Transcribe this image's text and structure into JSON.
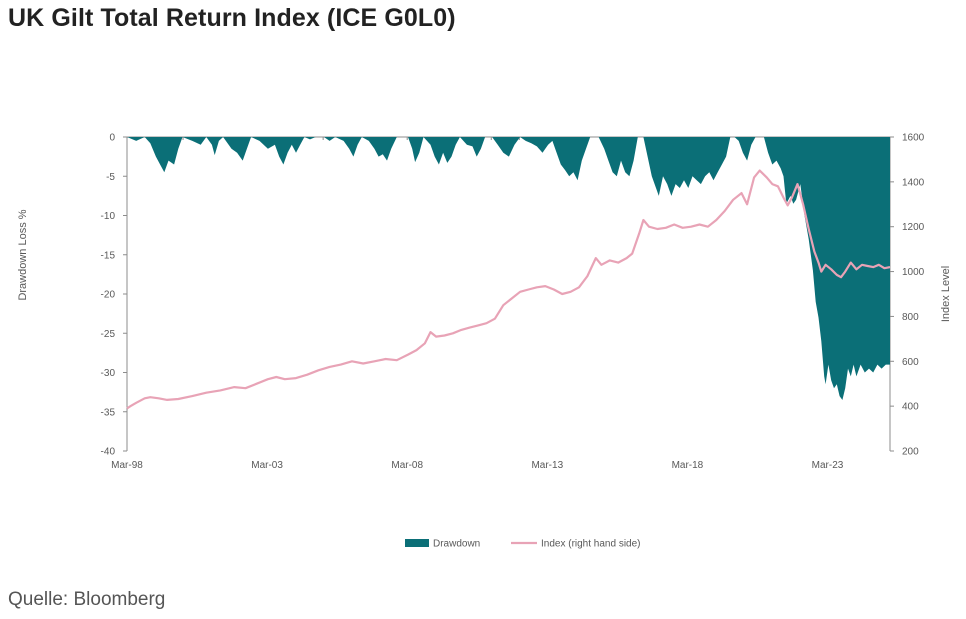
{
  "title": "UK Gilt Total Return Index (ICE G0L0)",
  "source": "Quelle: Bloomberg",
  "chart_data": {
    "type": "area+line",
    "title": "UK Gilt Total Return Index (ICE G0L0)",
    "x_range": [
      1998.17,
      2025.4
    ],
    "x_ticks": [
      {
        "label": "Mar-98",
        "t": 1998.17
      },
      {
        "label": "Mar-03",
        "t": 2003.17
      },
      {
        "label": "Mar-08",
        "t": 2008.17
      },
      {
        "label": "Mar-13",
        "t": 2013.17
      },
      {
        "label": "Mar-18",
        "t": 2018.17
      },
      {
        "label": "Mar-23",
        "t": 2023.17
      }
    ],
    "y_left": {
      "label": "Drawdown Loss %",
      "range": [
        -40,
        0
      ],
      "ticks": [
        "0",
        "-5",
        "-10",
        "-15",
        "-20",
        "-25",
        "-30",
        "-35",
        "-40"
      ]
    },
    "y_right": {
      "label": "Index Level",
      "range": [
        200,
        1600
      ],
      "ticks": [
        "1600",
        "1400",
        "1200",
        "1000",
        "800",
        "600",
        "400",
        "200"
      ]
    },
    "colors": {
      "drawdown": "#0b6f77",
      "index": "#e8a3b6",
      "axis": "#8c8c8c"
    },
    "legend": [
      {
        "name": "Drawdown",
        "kind": "area"
      },
      {
        "name": "Index (right hand side)",
        "kind": "line"
      }
    ],
    "series": [
      {
        "name": "Drawdown",
        "axis": "left",
        "points": [
          [
            1998.17,
            0
          ],
          [
            1998.5,
            -0.5
          ],
          [
            1998.8,
            0
          ],
          [
            1999.0,
            -0.8
          ],
          [
            1999.2,
            -2.5
          ],
          [
            1999.35,
            -3.5
          ],
          [
            1999.5,
            -4.5
          ],
          [
            1999.65,
            -3
          ],
          [
            1999.85,
            -3.5
          ],
          [
            2000.0,
            -1.5
          ],
          [
            2000.15,
            0
          ],
          [
            2000.5,
            -0.5
          ],
          [
            2000.8,
            -1
          ],
          [
            2001.0,
            0
          ],
          [
            2001.2,
            -1
          ],
          [
            2001.3,
            -2.3
          ],
          [
            2001.45,
            -0.5
          ],
          [
            2001.6,
            0
          ],
          [
            2001.9,
            -1.5
          ],
          [
            2002.1,
            -2
          ],
          [
            2002.3,
            -3
          ],
          [
            2002.45,
            -1.5
          ],
          [
            2002.6,
            0
          ],
          [
            2002.9,
            -0.5
          ],
          [
            2003.2,
            -1.5
          ],
          [
            2003.45,
            -1
          ],
          [
            2003.6,
            -2.5
          ],
          [
            2003.75,
            -3.5
          ],
          [
            2003.9,
            -2
          ],
          [
            2004.05,
            -1
          ],
          [
            2004.2,
            -2
          ],
          [
            2004.35,
            -1
          ],
          [
            2004.5,
            0
          ],
          [
            2004.7,
            -0.3
          ],
          [
            2004.9,
            0
          ],
          [
            2005.2,
            0
          ],
          [
            2005.4,
            -0.5
          ],
          [
            2005.6,
            0
          ],
          [
            2005.9,
            -0.5
          ],
          [
            2006.1,
            -1.5
          ],
          [
            2006.25,
            -2.5
          ],
          [
            2006.4,
            -1
          ],
          [
            2006.55,
            0
          ],
          [
            2006.8,
            -0.5
          ],
          [
            2007.0,
            -1.5
          ],
          [
            2007.15,
            -2.5
          ],
          [
            2007.3,
            -2.2
          ],
          [
            2007.45,
            -3
          ],
          [
            2007.6,
            -1.5
          ],
          [
            2007.8,
            0
          ],
          [
            2008.2,
            0
          ],
          [
            2008.35,
            -1.5
          ],
          [
            2008.45,
            -3.2
          ],
          [
            2008.6,
            -2
          ],
          [
            2008.75,
            0
          ],
          [
            2009.0,
            -1
          ],
          [
            2009.15,
            -2.5
          ],
          [
            2009.3,
            -3.5
          ],
          [
            2009.45,
            -2
          ],
          [
            2009.6,
            -3.3
          ],
          [
            2009.75,
            -2.5
          ],
          [
            2009.9,
            -1
          ],
          [
            2010.05,
            0
          ],
          [
            2010.3,
            -1
          ],
          [
            2010.5,
            -1.2
          ],
          [
            2010.65,
            -2.5
          ],
          [
            2010.8,
            -1.5
          ],
          [
            2010.95,
            0
          ],
          [
            2011.2,
            0
          ],
          [
            2011.4,
            -1
          ],
          [
            2011.6,
            -2
          ],
          [
            2011.8,
            -2.5
          ],
          [
            2012.0,
            -1
          ],
          [
            2012.2,
            0
          ],
          [
            2012.4,
            -0.5
          ],
          [
            2012.6,
            -0.8
          ],
          [
            2012.8,
            -1.2
          ],
          [
            2013.0,
            -2
          ],
          [
            2013.2,
            -1
          ],
          [
            2013.35,
            -0.5
          ],
          [
            2013.5,
            -2
          ],
          [
            2013.65,
            -3.5
          ],
          [
            2013.8,
            -4.2
          ],
          [
            2013.95,
            -5
          ],
          [
            2014.1,
            -4.5
          ],
          [
            2014.25,
            -5.5
          ],
          [
            2014.4,
            -3
          ],
          [
            2014.55,
            -1.5
          ],
          [
            2014.7,
            0
          ],
          [
            2015.0,
            0
          ],
          [
            2015.2,
            -1.5
          ],
          [
            2015.35,
            -3
          ],
          [
            2015.5,
            -4.5
          ],
          [
            2015.65,
            -5
          ],
          [
            2015.8,
            -3
          ],
          [
            2015.95,
            -4.5
          ],
          [
            2016.1,
            -5
          ],
          [
            2016.25,
            -3
          ],
          [
            2016.4,
            0
          ],
          [
            2016.6,
            0
          ],
          [
            2016.75,
            -2.5
          ],
          [
            2016.9,
            -5
          ],
          [
            2017.05,
            -6.5
          ],
          [
            2017.15,
            -7.5
          ],
          [
            2017.3,
            -5
          ],
          [
            2017.45,
            -6
          ],
          [
            2017.6,
            -7.5
          ],
          [
            2017.75,
            -6
          ],
          [
            2017.9,
            -6.5
          ],
          [
            2018.05,
            -5.5
          ],
          [
            2018.2,
            -6.5
          ],
          [
            2018.35,
            -5
          ],
          [
            2018.5,
            -5.5
          ],
          [
            2018.65,
            -6
          ],
          [
            2018.8,
            -5
          ],
          [
            2018.95,
            -4.5
          ],
          [
            2019.1,
            -5.5
          ],
          [
            2019.25,
            -4.5
          ],
          [
            2019.4,
            -3.5
          ],
          [
            2019.55,
            -2.5
          ],
          [
            2019.7,
            0
          ],
          [
            2019.85,
            0
          ],
          [
            2020.0,
            -0.5
          ],
          [
            2020.15,
            -2
          ],
          [
            2020.3,
            -3
          ],
          [
            2020.45,
            -1
          ],
          [
            2020.6,
            0
          ],
          [
            2020.9,
            0
          ],
          [
            2021.05,
            -2
          ],
          [
            2021.2,
            -3.5
          ],
          [
            2021.35,
            -3
          ],
          [
            2021.5,
            -4
          ],
          [
            2021.6,
            -5
          ],
          [
            2021.7,
            -8.5
          ],
          [
            2021.85,
            -7.5
          ],
          [
            2021.95,
            -8.5
          ],
          [
            2022.05,
            -8
          ],
          [
            2022.2,
            -6
          ],
          [
            2022.35,
            -10
          ],
          [
            2022.5,
            -13
          ],
          [
            2022.65,
            -17
          ],
          [
            2022.75,
            -21
          ],
          [
            2022.85,
            -23
          ],
          [
            2022.95,
            -26
          ],
          [
            2023.05,
            -30.5
          ],
          [
            2023.1,
            -31.5
          ],
          [
            2023.2,
            -29
          ],
          [
            2023.3,
            -31
          ],
          [
            2023.4,
            -32
          ],
          [
            2023.5,
            -31.5
          ],
          [
            2023.6,
            -33
          ],
          [
            2023.7,
            -33.5
          ],
          [
            2023.8,
            -32
          ],
          [
            2023.9,
            -29.5
          ],
          [
            2024.0,
            -30.5
          ],
          [
            2024.1,
            -29
          ],
          [
            2024.2,
            -30.5
          ],
          [
            2024.35,
            -29
          ],
          [
            2024.5,
            -30
          ],
          [
            2024.65,
            -29.5
          ],
          [
            2024.8,
            -30
          ],
          [
            2024.95,
            -29
          ],
          [
            2025.1,
            -29.5
          ],
          [
            2025.25,
            -29
          ],
          [
            2025.4,
            -29
          ]
        ]
      },
      {
        "name": "Index (right hand side)",
        "axis": "right",
        "points": [
          [
            1998.17,
            390
          ],
          [
            1998.3,
            400
          ],
          [
            1998.5,
            415
          ],
          [
            1998.8,
            435
          ],
          [
            1999.0,
            440
          ],
          [
            1999.3,
            435
          ],
          [
            1999.6,
            428
          ],
          [
            2000.0,
            432
          ],
          [
            2000.5,
            445
          ],
          [
            2001.0,
            460
          ],
          [
            2001.5,
            470
          ],
          [
            2002.0,
            485
          ],
          [
            2002.4,
            480
          ],
          [
            2002.8,
            500
          ],
          [
            2003.2,
            520
          ],
          [
            2003.5,
            530
          ],
          [
            2003.8,
            520
          ],
          [
            2004.2,
            525
          ],
          [
            2004.6,
            540
          ],
          [
            2005.0,
            560
          ],
          [
            2005.4,
            575
          ],
          [
            2005.8,
            585
          ],
          [
            2006.2,
            600
          ],
          [
            2006.6,
            590
          ],
          [
            2007.0,
            600
          ],
          [
            2007.4,
            610
          ],
          [
            2007.8,
            605
          ],
          [
            2008.2,
            630
          ],
          [
            2008.5,
            650
          ],
          [
            2008.8,
            680
          ],
          [
            2009.0,
            730
          ],
          [
            2009.2,
            710
          ],
          [
            2009.5,
            715
          ],
          [
            2009.8,
            725
          ],
          [
            2010.1,
            740
          ],
          [
            2010.4,
            750
          ],
          [
            2010.7,
            760
          ],
          [
            2011.0,
            770
          ],
          [
            2011.3,
            790
          ],
          [
            2011.6,
            850
          ],
          [
            2011.9,
            880
          ],
          [
            2012.2,
            910
          ],
          [
            2012.5,
            920
          ],
          [
            2012.8,
            930
          ],
          [
            2013.1,
            935
          ],
          [
            2013.4,
            920
          ],
          [
            2013.7,
            900
          ],
          [
            2014.0,
            910
          ],
          [
            2014.3,
            930
          ],
          [
            2014.6,
            980
          ],
          [
            2014.9,
            1060
          ],
          [
            2015.1,
            1030
          ],
          [
            2015.4,
            1050
          ],
          [
            2015.7,
            1040
          ],
          [
            2016.0,
            1060
          ],
          [
            2016.2,
            1080
          ],
          [
            2016.45,
            1170
          ],
          [
            2016.6,
            1230
          ],
          [
            2016.8,
            1200
          ],
          [
            2017.1,
            1190
          ],
          [
            2017.4,
            1195
          ],
          [
            2017.7,
            1210
          ],
          [
            2018.0,
            1195
          ],
          [
            2018.3,
            1200
          ],
          [
            2018.6,
            1210
          ],
          [
            2018.9,
            1200
          ],
          [
            2019.2,
            1230
          ],
          [
            2019.5,
            1270
          ],
          [
            2019.8,
            1320
          ],
          [
            2020.1,
            1350
          ],
          [
            2020.3,
            1300
          ],
          [
            2020.55,
            1420
          ],
          [
            2020.75,
            1450
          ],
          [
            2021.0,
            1420
          ],
          [
            2021.2,
            1390
          ],
          [
            2021.4,
            1380
          ],
          [
            2021.6,
            1330
          ],
          [
            2021.75,
            1295
          ],
          [
            2021.9,
            1330
          ],
          [
            2022.1,
            1390
          ],
          [
            2022.3,
            1300
          ],
          [
            2022.5,
            1190
          ],
          [
            2022.7,
            1090
          ],
          [
            2022.85,
            1040
          ],
          [
            2022.95,
            1000
          ],
          [
            2023.1,
            1030
          ],
          [
            2023.3,
            1010
          ],
          [
            2023.5,
            985
          ],
          [
            2023.65,
            975
          ],
          [
            2023.8,
            1000
          ],
          [
            2024.0,
            1040
          ],
          [
            2024.2,
            1010
          ],
          [
            2024.4,
            1030
          ],
          [
            2024.6,
            1025
          ],
          [
            2024.8,
            1020
          ],
          [
            2025.0,
            1030
          ],
          [
            2025.2,
            1015
          ],
          [
            2025.4,
            1020
          ]
        ]
      }
    ]
  }
}
